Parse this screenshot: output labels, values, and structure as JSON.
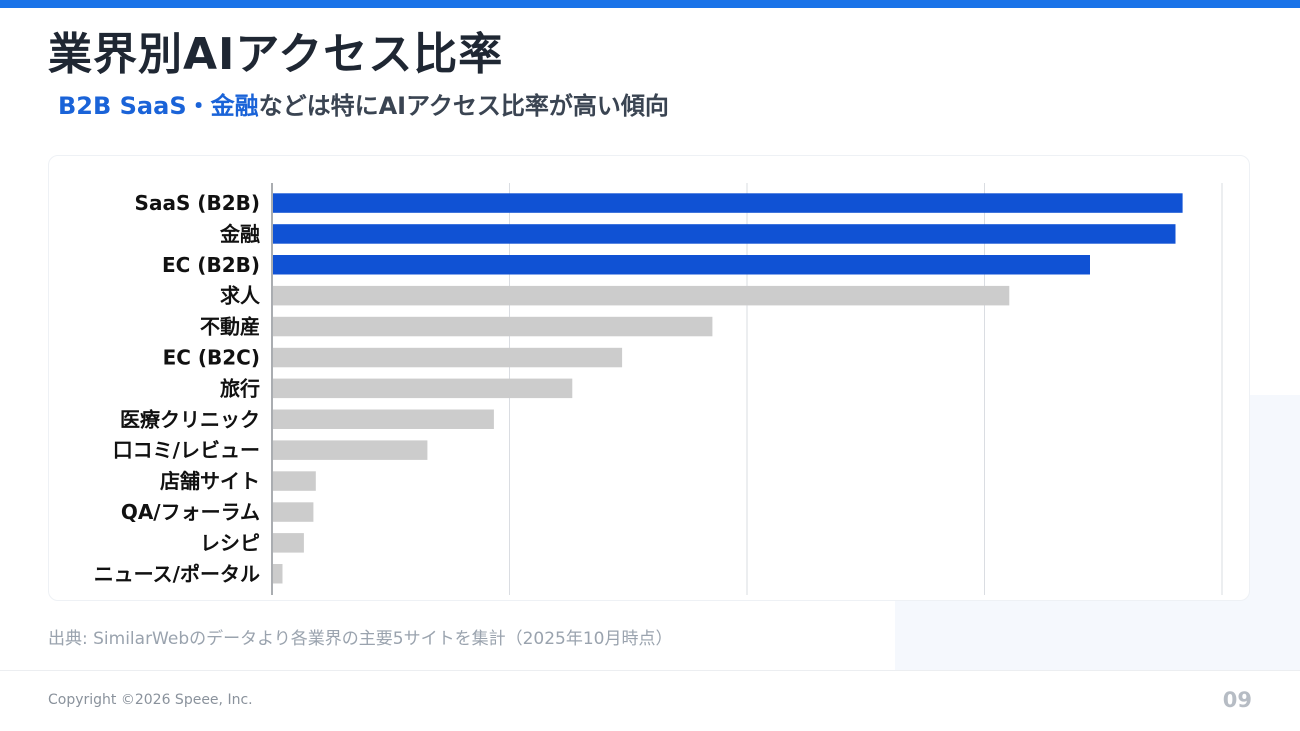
{
  "title": "業界別AIアクセス比率",
  "subtitle": {
    "highlight": "B2B SaaS・金融",
    "rest": "などは特にAIアクセス比率が高い傾向"
  },
  "source_note": "出典: SimilarWebのデータより各業界の主要5サイトを集計（2025年10月時点）",
  "footer": {
    "copyright": "Copyright ©2026 Speee, Inc.",
    "page_number": "09"
  },
  "colors": {
    "accent": "#1a73e8",
    "highlight_bar": "#1052d4",
    "default_bar": "#cccccc",
    "text": "#1f2733"
  },
  "chart_data": {
    "type": "bar",
    "orientation": "horizontal",
    "categories": [
      "SaaS (B2B)",
      "金融",
      "EC (B2B)",
      "求人",
      "不動産",
      "EC (B2C)",
      "旅行",
      "医療クリニック",
      "口コミ/レビュー",
      "店舗サイト",
      "QA/フォーラム",
      "レシピ",
      "ニュース/ポータル"
    ],
    "values": [
      3.83,
      3.8,
      3.44,
      3.1,
      1.85,
      1.47,
      1.26,
      0.93,
      0.65,
      0.18,
      0.17,
      0.13,
      0.04
    ],
    "highlighted": [
      "SaaS (B2B)",
      "金融",
      "EC (B2B)"
    ],
    "xlim": [
      0,
      4
    ],
    "grid": true,
    "legend": "none",
    "xlabel": "",
    "ylabel": ""
  }
}
